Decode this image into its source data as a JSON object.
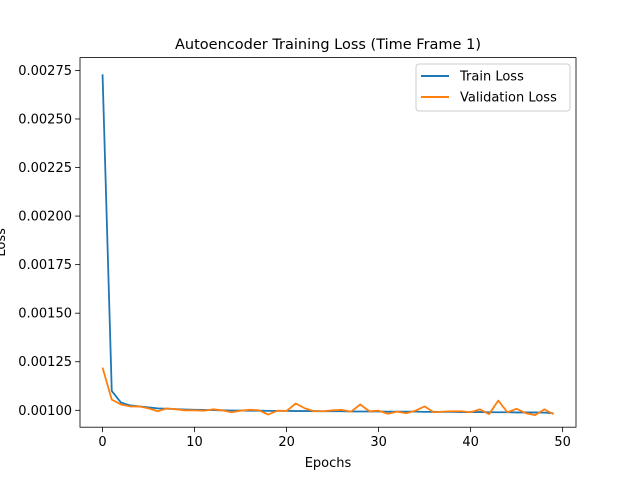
{
  "chart_data": {
    "type": "line",
    "title": "Autoencoder Training Loss (Time Frame 1)",
    "xlabel": "Epochs",
    "ylabel": "Loss",
    "xlim": [
      -2.45,
      51.45
    ],
    "ylim": [
      0.000913,
      0.002816
    ],
    "x_ticks": [
      0,
      10,
      20,
      30,
      40,
      50
    ],
    "y_ticks": [
      0.001,
      0.00125,
      0.0015,
      0.00175,
      0.002,
      0.00225,
      0.0025,
      0.00275
    ],
    "y_tick_labels": [
      "0.00100",
      "0.00125",
      "0.00150",
      "0.00175",
      "0.00200",
      "0.00225",
      "0.00250",
      "0.00275"
    ],
    "grid": false,
    "legend_position": "top-right",
    "x": [
      0,
      1,
      2,
      3,
      4,
      5,
      6,
      7,
      8,
      9,
      10,
      11,
      12,
      13,
      14,
      15,
      16,
      17,
      18,
      19,
      20,
      21,
      22,
      23,
      24,
      25,
      26,
      27,
      28,
      29,
      30,
      31,
      32,
      33,
      34,
      35,
      36,
      37,
      38,
      39,
      40,
      41,
      42,
      43,
      44,
      45,
      46,
      47,
      48,
      49
    ],
    "series": [
      {
        "name": "Train Loss",
        "color": "#1f77b4",
        "values": [
          0.00273,
          0.0011,
          0.00104,
          0.001025,
          0.00102,
          0.001015,
          0.00101,
          0.001008,
          0.001006,
          0.001004,
          0.001003,
          0.001002,
          0.001001,
          0.001,
          0.000999,
          0.000999,
          0.000998,
          0.000998,
          0.000997,
          0.000997,
          0.000997,
          0.000996,
          0.000996,
          0.000996,
          0.000995,
          0.000995,
          0.000995,
          0.000994,
          0.000994,
          0.000994,
          0.000994,
          0.000993,
          0.000993,
          0.000993,
          0.000993,
          0.000992,
          0.000992,
          0.000992,
          0.000992,
          0.000991,
          0.000991,
          0.000991,
          0.00099,
          0.00099,
          0.00099,
          0.000989,
          0.000989,
          0.000989,
          0.000988,
          0.000985
        ]
      },
      {
        "name": "Validation Loss",
        "color": "#ff7f0e",
        "values": [
          0.00122,
          0.001055,
          0.00103,
          0.00102,
          0.00102,
          0.00101,
          0.000995,
          0.00101,
          0.001005,
          0.001,
          0.001,
          0.000998,
          0.001005,
          0.001,
          0.00099,
          0.000998,
          0.001003,
          0.001,
          0.000978,
          0.000998,
          0.000997,
          0.001035,
          0.00101,
          0.000995,
          0.000995,
          0.001,
          0.001002,
          0.000993,
          0.00103,
          0.000995,
          0.000998,
          0.000982,
          0.000993,
          0.000985,
          0.000998,
          0.00102,
          0.00099,
          0.000993,
          0.000995,
          0.000995,
          0.00099,
          0.001005,
          0.00098,
          0.00105,
          0.00099,
          0.001008,
          0.000985,
          0.000975,
          0.001005,
          0.00098
        ]
      }
    ]
  }
}
